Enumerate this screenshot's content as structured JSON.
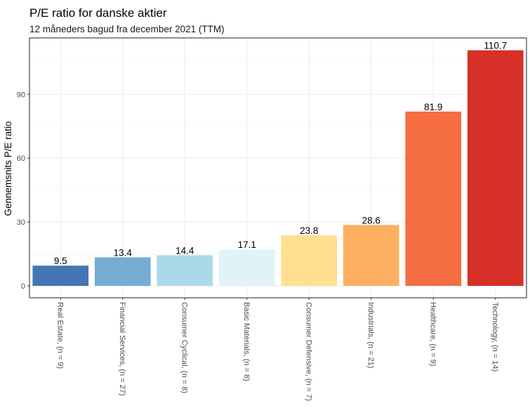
{
  "chart_data": {
    "type": "bar",
    "title": "P/E ratio for danske aktier",
    "subtitle": "12 måneders bagud fra december 2021 (TTM)",
    "xlabel": "",
    "ylabel": "Gennemsnits P/E ratio",
    "ylim": [
      -5.6,
      116.5
    ],
    "yticks": [
      0,
      30,
      60,
      90
    ],
    "grid": true,
    "categories": [
      "Real Estate, (n = 9)",
      "Financial Services, (n = 27)",
      "Consumer Cyclical, (n = 8)",
      "Basic Materials, (n = 8)",
      "Consumer Defensive, (n = 7)",
      "Industrials, (n = 21)",
      "Healthcare, (n = 9)",
      "Technology, (n = 14)"
    ],
    "values": [
      9.5,
      13.4,
      14.4,
      17.1,
      23.8,
      28.6,
      81.9,
      110.7
    ],
    "data_labels": [
      "9.5",
      "13.4",
      "14.4",
      "17.1",
      "23.8",
      "28.6",
      "81.9",
      "110.7"
    ],
    "colors": [
      "#4575b4",
      "#74add1",
      "#abd9e9",
      "#e0f3f8",
      "#fee090",
      "#fdae61",
      "#f46d43",
      "#d73027"
    ]
  }
}
